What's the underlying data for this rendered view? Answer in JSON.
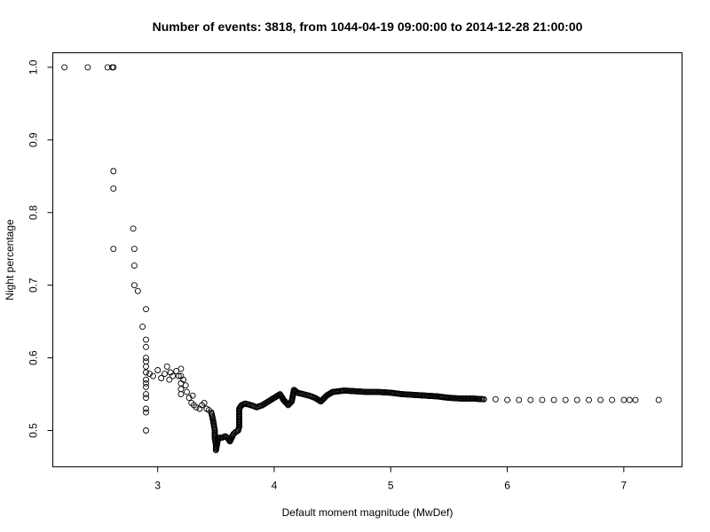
{
  "chart_data": {
    "type": "scatter",
    "title": "Number of events: 3818, from 1044-04-19 09:00:00 to 2014-12-28 21:00:00",
    "xlabel": "Default moment magnitude (MwDef)",
    "ylabel": "Night percentage",
    "xlim": [
      2.1,
      7.5
    ],
    "ylim": [
      0.45,
      1.02
    ],
    "x_ticks": [
      3,
      4,
      5,
      6,
      7
    ],
    "y_ticks": [
      0.5,
      0.6,
      0.7,
      0.8,
      0.9,
      1.0
    ],
    "x_tick_labels": [
      "3",
      "4",
      "5",
      "6",
      "7"
    ],
    "y_tick_labels": [
      "0.5",
      "0.6",
      "0.7",
      "0.8",
      "0.9",
      "1.0"
    ],
    "grid": false,
    "marker": "open-circle",
    "series": [
      {
        "points": [
          [
            2.2,
            1.0
          ],
          [
            2.4,
            1.0
          ],
          [
            2.57,
            1.0
          ],
          [
            2.61,
            1.0
          ],
          [
            2.62,
            1.0
          ],
          [
            2.62,
            0.857
          ],
          [
            2.62,
            0.833
          ],
          [
            2.62,
            0.75
          ],
          [
            2.79,
            0.778
          ],
          [
            2.8,
            0.75
          ],
          [
            2.8,
            0.727
          ],
          [
            2.8,
            0.7
          ],
          [
            2.83,
            0.692
          ],
          [
            2.87,
            0.643
          ],
          [
            2.9,
            0.667
          ],
          [
            2.9,
            0.625
          ],
          [
            2.9,
            0.615
          ],
          [
            2.9,
            0.6
          ],
          [
            2.9,
            0.595
          ],
          [
            2.9,
            0.588
          ],
          [
            2.9,
            0.58
          ],
          [
            2.9,
            0.57
          ],
          [
            2.9,
            0.565
          ],
          [
            2.9,
            0.56
          ],
          [
            2.9,
            0.55
          ],
          [
            2.9,
            0.545
          ],
          [
            2.9,
            0.53
          ],
          [
            2.9,
            0.525
          ],
          [
            2.9,
            0.5
          ],
          [
            2.93,
            0.578
          ],
          [
            2.96,
            0.575
          ],
          [
            3.0,
            0.583
          ],
          [
            3.03,
            0.572
          ],
          [
            3.06,
            0.578
          ],
          [
            3.08,
            0.588
          ],
          [
            3.1,
            0.57
          ],
          [
            3.11,
            0.58
          ],
          [
            3.13,
            0.575
          ],
          [
            3.16,
            0.582
          ],
          [
            3.18,
            0.575
          ],
          [
            3.2,
            0.585
          ],
          [
            3.2,
            0.575
          ],
          [
            3.2,
            0.565
          ],
          [
            3.2,
            0.557
          ],
          [
            3.2,
            0.55
          ],
          [
            3.22,
            0.57
          ],
          [
            3.24,
            0.562
          ],
          [
            3.25,
            0.553
          ],
          [
            3.27,
            0.545
          ],
          [
            3.29,
            0.538
          ],
          [
            3.3,
            0.548
          ],
          [
            3.31,
            0.535
          ],
          [
            3.33,
            0.532
          ],
          [
            3.36,
            0.53
          ],
          [
            3.38,
            0.535
          ],
          [
            3.4,
            0.538
          ],
          [
            3.42,
            0.53
          ],
          [
            3.44,
            0.528
          ],
          [
            3.46,
            0.525
          ],
          [
            3.47,
            0.518
          ],
          [
            3.48,
            0.51
          ],
          [
            3.49,
            0.5
          ],
          [
            3.49,
            0.49
          ],
          [
            3.5,
            0.48
          ],
          [
            3.5,
            0.473
          ],
          [
            3.52,
            0.49
          ],
          [
            3.55,
            0.49
          ],
          [
            3.58,
            0.492
          ],
          [
            3.6,
            0.49
          ],
          [
            3.62,
            0.485
          ],
          [
            3.65,
            0.495
          ],
          [
            3.67,
            0.498
          ],
          [
            3.69,
            0.5
          ],
          [
            3.7,
            0.505
          ],
          [
            3.7,
            0.53
          ],
          [
            3.72,
            0.535
          ],
          [
            3.75,
            0.537
          ],
          [
            3.8,
            0.535
          ],
          [
            3.85,
            0.532
          ],
          [
            3.9,
            0.535
          ],
          [
            3.95,
            0.54
          ],
          [
            4.0,
            0.545
          ],
          [
            4.05,
            0.55
          ],
          [
            4.08,
            0.542
          ],
          [
            4.12,
            0.535
          ],
          [
            4.15,
            0.54
          ],
          [
            4.17,
            0.556
          ],
          [
            4.2,
            0.552
          ],
          [
            4.25,
            0.55
          ],
          [
            4.3,
            0.548
          ],
          [
            4.35,
            0.545
          ],
          [
            4.4,
            0.54
          ],
          [
            4.45,
            0.548
          ],
          [
            4.5,
            0.553
          ],
          [
            4.6,
            0.555
          ],
          [
            4.7,
            0.554
          ],
          [
            4.8,
            0.553
          ],
          [
            4.9,
            0.553
          ],
          [
            5.0,
            0.552
          ],
          [
            5.1,
            0.55
          ],
          [
            5.2,
            0.549
          ],
          [
            5.3,
            0.548
          ],
          [
            5.4,
            0.547
          ],
          [
            5.5,
            0.545
          ],
          [
            5.6,
            0.544
          ],
          [
            5.7,
            0.544
          ],
          [
            5.8,
            0.543
          ],
          [
            5.9,
            0.543
          ],
          [
            6.0,
            0.542
          ],
          [
            6.1,
            0.542
          ],
          [
            6.2,
            0.542
          ],
          [
            6.3,
            0.542
          ],
          [
            6.4,
            0.542
          ],
          [
            6.5,
            0.542
          ],
          [
            6.6,
            0.542
          ],
          [
            6.7,
            0.542
          ],
          [
            6.8,
            0.542
          ],
          [
            6.9,
            0.542
          ],
          [
            7.0,
            0.542
          ],
          [
            7.05,
            0.542
          ],
          [
            7.1,
            0.542
          ],
          [
            7.3,
            0.542
          ]
        ]
      }
    ]
  }
}
